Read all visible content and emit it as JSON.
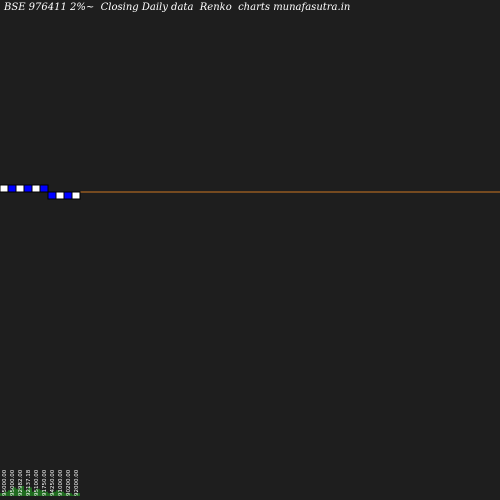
{
  "title": "BSE 976411 2%~  Closing Daily data  Renko  charts munafasutra.in",
  "colors": {
    "background": "#1e1e1e",
    "up_brick": "#ffffff",
    "down_brick": "#0000ff",
    "brick_outline": "#000000",
    "reference_line": "#cc7722",
    "volume": "#1f6b1f",
    "text": "#ffffff"
  },
  "chart_data": {
    "type": "renko",
    "title": "BSE 976411 2%~  Closing Daily data  Renko  charts munafasutra.in",
    "bricks": [
      {
        "direction": "up",
        "open": 94000,
        "close": 95000,
        "label": "95000.00"
      },
      {
        "direction": "down",
        "open": 95000,
        "close": 94000,
        "label": "95000.00"
      },
      {
        "direction": "up",
        "open": 94000,
        "close": 95000,
        "label": "92982.00"
      },
      {
        "direction": "down",
        "open": 95000,
        "close": 94000,
        "label": "92137.18"
      },
      {
        "direction": "up",
        "open": 94000,
        "close": 95000,
        "label": "95100.00"
      },
      {
        "direction": "down",
        "open": 95000,
        "close": 94000,
        "label": "91750.00"
      },
      {
        "direction": "down",
        "open": 94000,
        "close": 93000,
        "label": "94250.00"
      },
      {
        "direction": "up",
        "open": 93000,
        "close": 94000,
        "label": "91000.00"
      },
      {
        "direction": "down",
        "open": 94000,
        "close": 93000,
        "label": "90200.00"
      },
      {
        "direction": "up",
        "open": 93000,
        "close": 94000,
        "label": "92000.00"
      }
    ],
    "reference_line": 94000,
    "volume": [
      2,
      3,
      4,
      6,
      5,
      7,
      4,
      6,
      3,
      5,
      4,
      3,
      2,
      3,
      4,
      3,
      2,
      2,
      1,
      2
    ]
  }
}
